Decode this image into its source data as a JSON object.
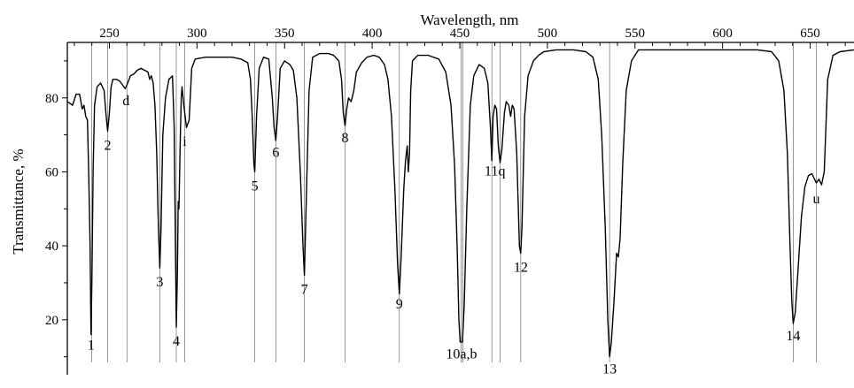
{
  "chart_data": {
    "type": "line",
    "title": "",
    "xlabel": "Wavelength, nm",
    "ylabel": "Transmittance, %",
    "xlim": [
      226,
      675
    ],
    "ylim": [
      8,
      95
    ],
    "x_axis_position": "top",
    "x_ticks": [
      250,
      300,
      350,
      400,
      450,
      500,
      550,
      600,
      650
    ],
    "x_tick_labels": [
      "250",
      "300",
      "350",
      "400",
      "450",
      "500",
      "550",
      "600",
      "650"
    ],
    "y_ticks": [
      20,
      40,
      60,
      80
    ],
    "y_tick_labels": [
      "20",
      "40",
      "60",
      "80"
    ],
    "grid": false,
    "legend": "none",
    "line_color": "#000000",
    "series": [
      {
        "values": [
          [
            226,
            79
          ],
          [
            229,
            78
          ],
          [
            231,
            81
          ],
          [
            233,
            81
          ],
          [
            234.5,
            77
          ],
          [
            235.5,
            78
          ],
          [
            236.5,
            75
          ],
          [
            237.5,
            74
          ],
          [
            238.2,
            60
          ],
          [
            239,
            40
          ],
          [
            239.5,
            16
          ],
          [
            240,
            30
          ],
          [
            240.7,
            60
          ],
          [
            241.5,
            78
          ],
          [
            243,
            83
          ],
          [
            245,
            84
          ],
          [
            247,
            82
          ],
          [
            248,
            76
          ],
          [
            249,
            71
          ],
          [
            250,
            76
          ],
          [
            251,
            83
          ],
          [
            252,
            85
          ],
          [
            254,
            85
          ],
          [
            256,
            84.5
          ],
          [
            257.5,
            83.5
          ],
          [
            259,
            82.5
          ],
          [
            260.5,
            84
          ],
          [
            262,
            86
          ],
          [
            264,
            86.5
          ],
          [
            266,
            87.5
          ],
          [
            268,
            88
          ],
          [
            270,
            87.5
          ],
          [
            272,
            87
          ],
          [
            273,
            85
          ],
          [
            274,
            86
          ],
          [
            275,
            84
          ],
          [
            276,
            78
          ],
          [
            277,
            65
          ],
          [
            278,
            45
          ],
          [
            278.8,
            34
          ],
          [
            279.5,
            45
          ],
          [
            280.5,
            70
          ],
          [
            282,
            80
          ],
          [
            284,
            85
          ],
          [
            286,
            86
          ],
          [
            287,
            72
          ],
          [
            287.5,
            50
          ],
          [
            288.2,
            18
          ],
          [
            288.8,
            32
          ],
          [
            289.3,
            52
          ],
          [
            289.7,
            50
          ],
          [
            290.5,
            70
          ],
          [
            291,
            80
          ],
          [
            291.5,
            83
          ],
          [
            292.5,
            78
          ],
          [
            294,
            72
          ],
          [
            295.5,
            74
          ],
          [
            297,
            88
          ],
          [
            299,
            90.5
          ],
          [
            305,
            91
          ],
          [
            312,
            91
          ],
          [
            320,
            91
          ],
          [
            325,
            90.5
          ],
          [
            327,
            90
          ],
          [
            329,
            89.5
          ],
          [
            330.5,
            85
          ],
          [
            331.5,
            75
          ],
          [
            332.5,
            62
          ],
          [
            333,
            60
          ],
          [
            334,
            75
          ],
          [
            335.5,
            88
          ],
          [
            338,
            91
          ],
          [
            341,
            90.5
          ],
          [
            343,
            80
          ],
          [
            344,
            72
          ],
          [
            345,
            68.5
          ],
          [
            346,
            75
          ],
          [
            347.5,
            88
          ],
          [
            350,
            90
          ],
          [
            353,
            89
          ],
          [
            355,
            87.5
          ],
          [
            357,
            80
          ],
          [
            359,
            60
          ],
          [
            360.5,
            40
          ],
          [
            361.3,
            32
          ],
          [
            362.5,
            55
          ],
          [
            364,
            82
          ],
          [
            366,
            91
          ],
          [
            370,
            92
          ],
          [
            375,
            92
          ],
          [
            378,
            91.5
          ],
          [
            381,
            90
          ],
          [
            382.5,
            85
          ],
          [
            383.5,
            76
          ],
          [
            384.5,
            72.5
          ],
          [
            385.5,
            77
          ],
          [
            386.5,
            80
          ],
          [
            388,
            79
          ],
          [
            389.5,
            82
          ],
          [
            391,
            87
          ],
          [
            394,
            89.5
          ],
          [
            397,
            91
          ],
          [
            401,
            91.5
          ],
          [
            404,
            91
          ],
          [
            407,
            89
          ],
          [
            409,
            85
          ],
          [
            411,
            75
          ],
          [
            413,
            55
          ],
          [
            414.5,
            35
          ],
          [
            415.5,
            27
          ],
          [
            416.5,
            37
          ],
          [
            418,
            55
          ],
          [
            419,
            63
          ],
          [
            420,
            67
          ],
          [
            420.6,
            60
          ],
          [
            421.3,
            65
          ],
          [
            422,
            82
          ],
          [
            423,
            90
          ],
          [
            426,
            91.5
          ],
          [
            432,
            91.5
          ],
          [
            438,
            90.5
          ],
          [
            442,
            87
          ],
          [
            445,
            78
          ],
          [
            447,
            62
          ],
          [
            448.5,
            40
          ],
          [
            449.5,
            20
          ],
          [
            450.2,
            14
          ],
          [
            451.5,
            14
          ],
          [
            452.5,
            24
          ],
          [
            454,
            50
          ],
          [
            456,
            78
          ],
          [
            458,
            86
          ],
          [
            461,
            89
          ],
          [
            464,
            88
          ],
          [
            466,
            84
          ],
          [
            467.5,
            72
          ],
          [
            468.3,
            63
          ],
          [
            469,
            75
          ],
          [
            470,
            78
          ],
          [
            471,
            77
          ],
          [
            472,
            67
          ],
          [
            473,
            62.5
          ],
          [
            474,
            66
          ],
          [
            475.5,
            76
          ],
          [
            476.5,
            79
          ],
          [
            478,
            78
          ],
          [
            479,
            75
          ],
          [
            480,
            78
          ],
          [
            481,
            77
          ],
          [
            482.5,
            65
          ],
          [
            484,
            40
          ],
          [
            484.8,
            38
          ],
          [
            485.5,
            45
          ],
          [
            487,
            75
          ],
          [
            489,
            86
          ],
          [
            492,
            90
          ],
          [
            495,
            91.5
          ],
          [
            498,
            92.5
          ],
          [
            505,
            93
          ],
          [
            515,
            93
          ],
          [
            522,
            92.5
          ],
          [
            526,
            91
          ],
          [
            529,
            85
          ],
          [
            531,
            70
          ],
          [
            533,
            45
          ],
          [
            534.5,
            20
          ],
          [
            535.5,
            10
          ],
          [
            536.5,
            14
          ],
          [
            538,
            25
          ],
          [
            539.5,
            38
          ],
          [
            540.5,
            37
          ],
          [
            541.5,
            42
          ],
          [
            543,
            62
          ],
          [
            545,
            82
          ],
          [
            548,
            90
          ],
          [
            552,
            93
          ],
          [
            560,
            93
          ],
          [
            575,
            93
          ],
          [
            600,
            93
          ],
          [
            620,
            93
          ],
          [
            628,
            92.5
          ],
          [
            632,
            90
          ],
          [
            635,
            82
          ],
          [
            637,
            65
          ],
          [
            638.5,
            40
          ],
          [
            639.5,
            25
          ],
          [
            640.3,
            19
          ],
          [
            641.5,
            22
          ],
          [
            643,
            33
          ],
          [
            645,
            48
          ],
          [
            647,
            56
          ],
          [
            649,
            59
          ],
          [
            651,
            59.5
          ],
          [
            652.5,
            58
          ],
          [
            653.5,
            57
          ],
          [
            655,
            58
          ],
          [
            656.5,
            56.5
          ],
          [
            658,
            60
          ],
          [
            660,
            85
          ],
          [
            663,
            91.5
          ],
          [
            667,
            92.5
          ],
          [
            675,
            93
          ]
        ]
      }
    ],
    "reference_lines": [
      240,
      249,
      260,
      278.8,
      288.2,
      293,
      333,
      345,
      361.3,
      384.5,
      415.5,
      450.8,
      451.8,
      468.3,
      473,
      484.8,
      535.5,
      640.3,
      653.5
    ],
    "annotations": [
      {
        "text": "1",
        "x": 239.5,
        "y": 12
      },
      {
        "text": "2",
        "x": 249,
        "y": 66
      },
      {
        "text": "d",
        "x": 259.5,
        "y": 78
      },
      {
        "text": "3",
        "x": 278.8,
        "y": 29
      },
      {
        "text": "i",
        "x": 293,
        "y": 67
      },
      {
        "text": "4",
        "x": 288.2,
        "y": 13
      },
      {
        "text": "5",
        "x": 333,
        "y": 55
      },
      {
        "text": "6",
        "x": 345,
        "y": 64
      },
      {
        "text": "7",
        "x": 361.3,
        "y": 27
      },
      {
        "text": "8",
        "x": 384.5,
        "y": 68
      },
      {
        "text": "9",
        "x": 415.5,
        "y": 23
      },
      {
        "text": "10a,b",
        "x": 451,
        "y": 9.5
      },
      {
        "text": "11",
        "x": 468,
        "y": 59
      },
      {
        "text": "q",
        "x": 474,
        "y": 59
      },
      {
        "text": "12",
        "x": 484.8,
        "y": 33
      },
      {
        "text": "13",
        "x": 535.5,
        "y": 5.5
      },
      {
        "text": "14",
        "x": 640.3,
        "y": 14.5
      },
      {
        "text": "u",
        "x": 653.5,
        "y": 51.5
      }
    ]
  }
}
